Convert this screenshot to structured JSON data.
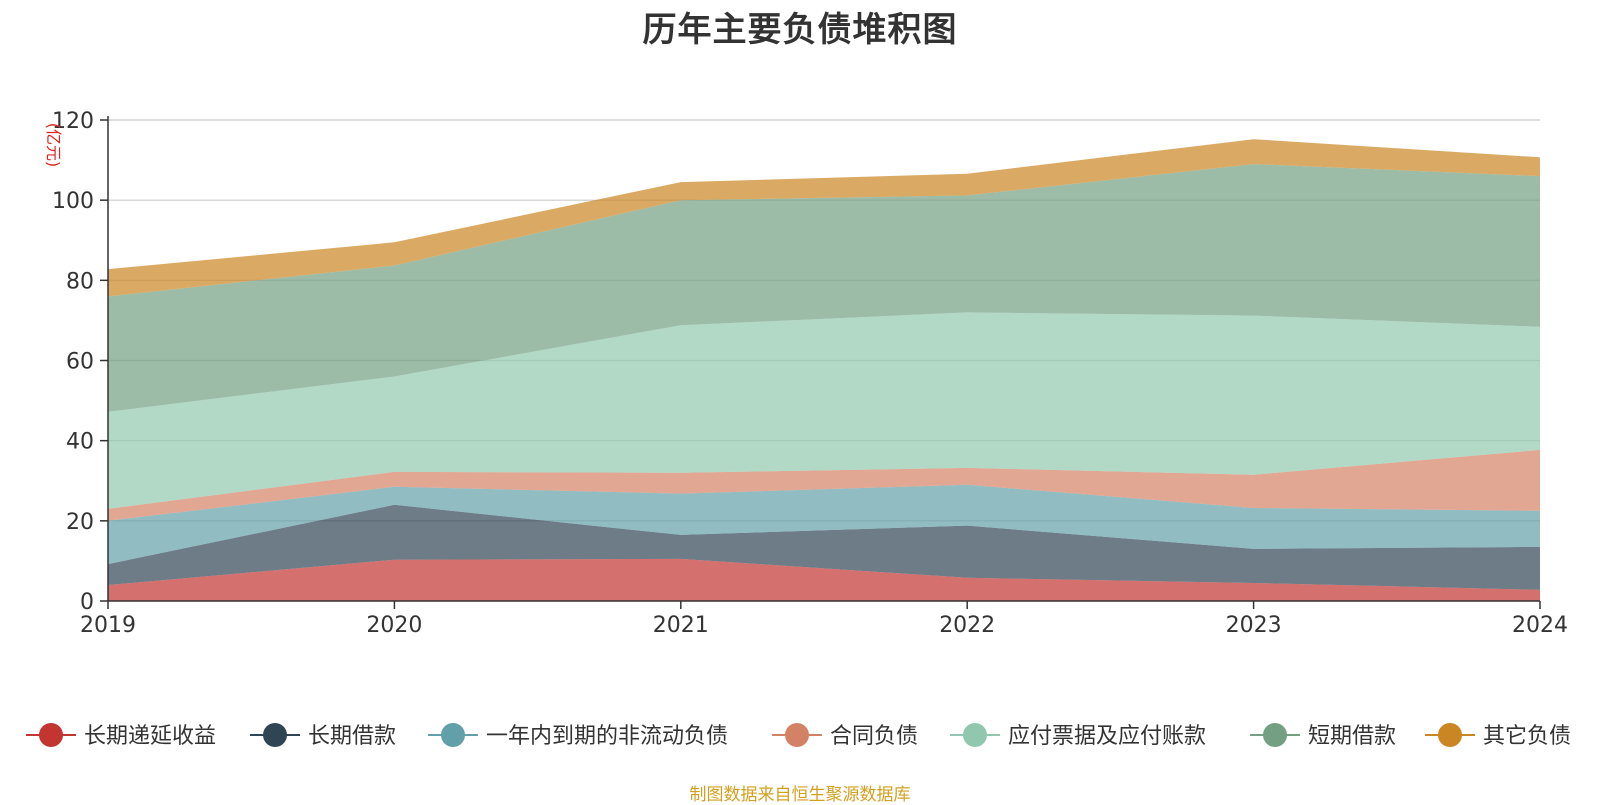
{
  "chart_data": {
    "type": "area",
    "stacked": true,
    "title": "历年主要负债堆积图",
    "unit": "(亿元)",
    "categories": [
      "2019",
      "2020",
      "2021",
      "2022",
      "2023",
      "2024"
    ],
    "ylim": [
      0,
      120
    ],
    "yticks": [
      0,
      20,
      40,
      60,
      80,
      100,
      120
    ],
    "grid": true,
    "legend_position": "bottom",
    "series": [
      {
        "name": "长期递延收益",
        "color": "#c23531",
        "values": [
          4,
          10.3,
          10.5,
          5.8,
          4.5,
          2.8
        ]
      },
      {
        "name": "长期借款",
        "color": "#2f4554",
        "values": [
          5.2,
          13.7,
          6,
          13,
          8.5,
          10.7
        ]
      },
      {
        "name": "一年内到期的非流动负债",
        "color": "#61a0a8",
        "values": [
          10.8,
          4.5,
          10.3,
          10.2,
          10.2,
          9
        ]
      },
      {
        "name": "合同负债",
        "color": "#d48265",
        "values": [
          3,
          3.7,
          5.2,
          4.2,
          8.3,
          15.2
        ]
      },
      {
        "name": "应付票据及应付账款",
        "color": "#91c7ae",
        "values": [
          24.2,
          23.8,
          36.8,
          38.8,
          39.7,
          30.7
        ]
      },
      {
        "name": "短期借款",
        "color": "#749f83",
        "values": [
          28.8,
          27.7,
          31.2,
          29.2,
          37.8,
          37.6
        ]
      },
      {
        "name": "其它负债",
        "color": "#ca8622",
        "values": [
          6.8,
          5.8,
          4.5,
          5.4,
          6.2,
          4.7
        ]
      }
    ]
  },
  "source_note": "制图数据来自恒生聚源数据库"
}
